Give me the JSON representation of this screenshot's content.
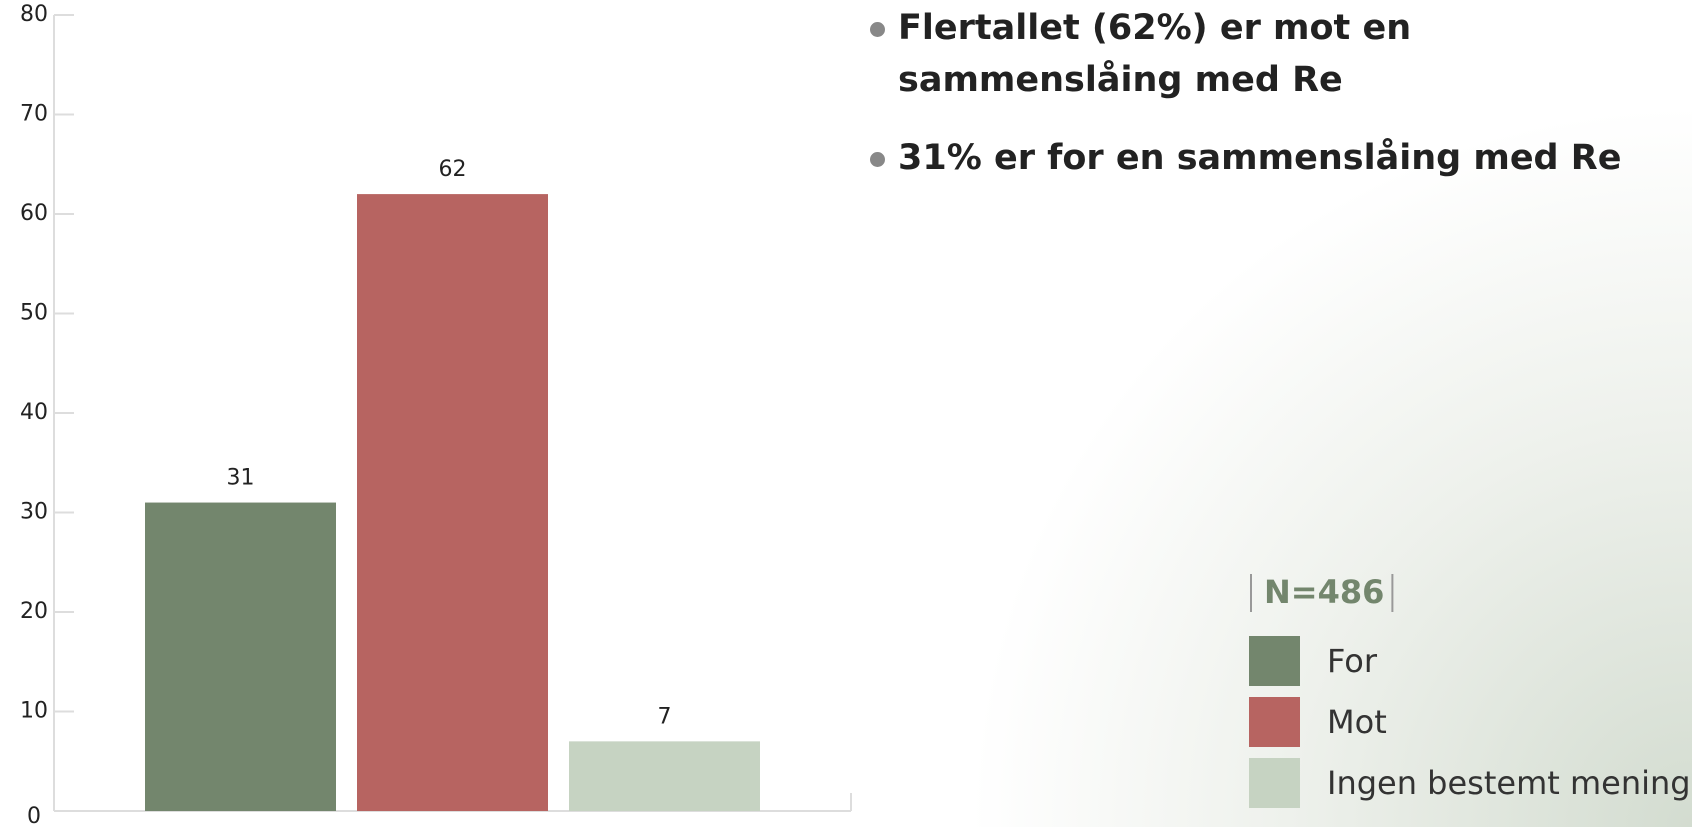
{
  "chart_data": {
    "type": "bar",
    "categories": [
      "For",
      "Mot",
      "Ingen bestemt mening"
    ],
    "values": [
      31,
      62,
      7
    ],
    "colors": [
      "#73866d",
      "#b76461",
      "#c6d3c2"
    ],
    "ylim": [
      0,
      80
    ],
    "yticks": [
      0,
      10,
      20,
      30,
      40,
      50,
      60,
      70,
      80
    ],
    "grid": false,
    "annotation": "N=486",
    "bullets": [
      "Flertallet (62%) er mot en sammenslåing med Re",
      "31% er for en sammenslåing med Re"
    ]
  }
}
